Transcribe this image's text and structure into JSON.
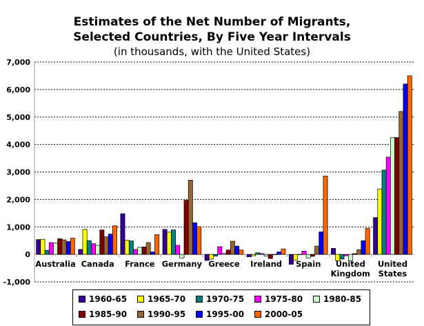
{
  "chart_data": {
    "type": "bar",
    "title_line1": "Estimates of the Net Number of Migrants,",
    "title_line2": "Selected Countries, By Five Year Intervals",
    "subtitle": "(in thousands, with the United States)",
    "xlabel": "",
    "ylabel": "",
    "ylim": [
      -1000,
      7000
    ],
    "yticks": [
      -1000,
      0,
      1000,
      2000,
      3000,
      4000,
      5000,
      6000,
      7000
    ],
    "ytick_labels": [
      "-1,000",
      "0",
      "1,000",
      "2,000",
      "3,000",
      "4,000",
      "5,000",
      "6,000",
      "7,000"
    ],
    "grid": "horizontal dashed",
    "legend_position": "bottom",
    "categories": [
      [
        "Australia"
      ],
      [
        "Canada"
      ],
      [
        "France"
      ],
      [
        "Germany"
      ],
      [
        "Greece"
      ],
      [
        "Ireland"
      ],
      [
        "Spain"
      ],
      [
        "United",
        "Kingdom"
      ],
      [
        "United",
        "States"
      ]
    ],
    "series": [
      {
        "name": "1960-65",
        "color": "#330099",
        "values": [
          540,
          180,
          1480,
          910,
          -220,
          -90,
          -360,
          220,
          1340
        ]
      },
      {
        "name": "1965-70",
        "color": "#FFFF00",
        "values": [
          550,
          910,
          520,
          810,
          -170,
          -50,
          -210,
          -230,
          2380
        ]
      },
      {
        "name": "1970-75",
        "color": "#008080",
        "values": [
          150,
          500,
          490,
          890,
          -60,
          60,
          0,
          -170,
          3070
        ]
      },
      {
        "name": "1975-80",
        "color": "#FF00FF",
        "values": [
          430,
          390,
          180,
          330,
          280,
          30,
          120,
          -50,
          3540
        ]
      },
      {
        "name": "1980-85",
        "color": "#CCFFCC",
        "values": [
          410,
          330,
          260,
          -130,
          40,
          -60,
          -130,
          -230,
          4250
        ]
      },
      {
        "name": "1985-90",
        "color": "#800000",
        "values": [
          570,
          890,
          270,
          1970,
          160,
          -150,
          -70,
          30,
          4250
        ]
      },
      {
        "name": "1990-95",
        "color": "#996633",
        "values": [
          530,
          640,
          430,
          2700,
          480,
          0,
          300,
          170,
          5200
        ]
      },
      {
        "name": "1995-00",
        "color": "#0000FF",
        "values": [
          470,
          740,
          90,
          1150,
          300,
          90,
          820,
          500,
          6200
        ]
      },
      {
        "name": "2000-05",
        "color": "#FF6600",
        "values": [
          590,
          1040,
          720,
          1010,
          160,
          200,
          2850,
          950,
          6500
        ]
      }
    ]
  }
}
